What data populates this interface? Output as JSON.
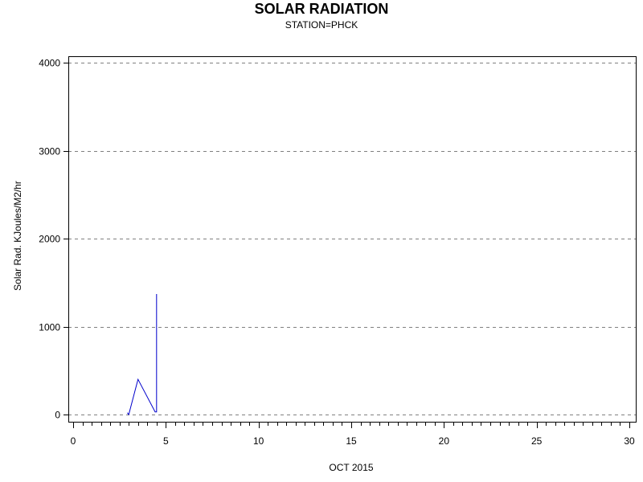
{
  "title": "SOLAR RADIATION",
  "subtitle": "STATION=PHCK",
  "chart_data": {
    "type": "line",
    "title": "SOLAR RADIATION",
    "subtitle": "STATION=PHCK",
    "xlabel": "OCT 2015",
    "ylabel": "Solar Rad. KJoules/M2/hr",
    "xlim": [
      0,
      30
    ],
    "ylim": [
      0,
      4000
    ],
    "x_ticks": [
      0,
      5,
      10,
      15,
      20,
      25,
      30
    ],
    "x_tick_labels": [
      "0",
      "5",
      "10",
      "15",
      "20",
      "25",
      "30"
    ],
    "x_minor_step": 0.5,
    "y_ticks": [
      0,
      1000,
      2000,
      3000,
      4000
    ],
    "y_tick_labels": [
      "0",
      "1000",
      "2000",
      "3000",
      "4000"
    ],
    "grid": "horizontal dashed",
    "legend": "none",
    "series": [
      {
        "color": "#0000cc",
        "x": [
          2.92,
          3.0,
          3.5,
          4.42,
          4.5,
          4.5
        ],
        "y": [
          20,
          0,
          400,
          30,
          30,
          1370
        ]
      }
    ]
  }
}
